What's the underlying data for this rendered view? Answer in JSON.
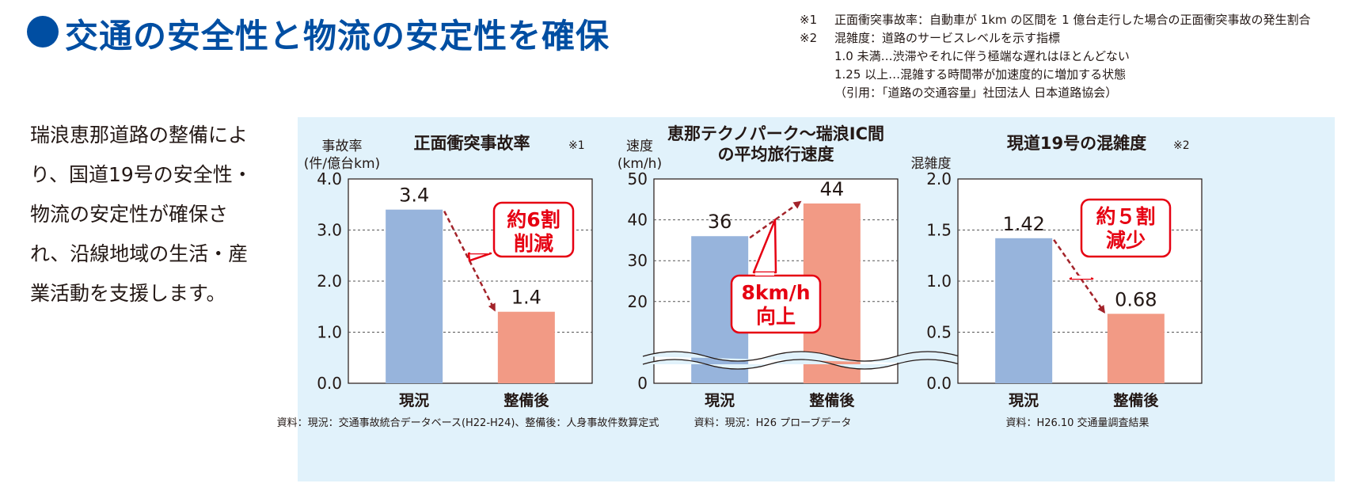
{
  "header": {
    "title": "交通の安全性と物流の安定性を確保"
  },
  "notes": [
    {
      "mark": "※1",
      "text": "正面衝突事故率：自動車が 1km の区間を 1 億台走行した場合の正面衝突事故の発生割合"
    },
    {
      "mark": "※2",
      "text": "混雑度：道路のサービスレベルを示す指標"
    },
    {
      "mark": "",
      "text": "1.0 未満…渋滞やそれに伴う極端な遅れはほとんどない"
    },
    {
      "mark": "",
      "text": "1.25 以上…混雑する時間帯が加速度的に増加する状態"
    },
    {
      "mark": "",
      "text": "（引用：「道路の交通容量」社団法人 日本道路協会）"
    }
  ],
  "intro": {
    "lines": [
      "瑞浪恵那道路の整備によ",
      "り、国道19号の安全性・",
      "物流の安定性が確保さ",
      "れ、沿線地域の生活・産",
      "業活動を支援します。"
    ]
  },
  "colors": {
    "title": "#004ea2",
    "before_bar": "#97b4dc",
    "after_bar": "#f29a85",
    "arrow": "#a3232a",
    "callout_border": "#e60012",
    "callout_text": "#e60012",
    "panel": "#e1f2fb"
  },
  "chart_data": [
    {
      "type": "bar",
      "title": "正面衝突事故率",
      "title_note": "※1",
      "ylabel_lines": [
        "事故率",
        "(件/億台km)"
      ],
      "categories": [
        "現況",
        "整備後"
      ],
      "values": [
        3.4,
        1.4
      ],
      "value_labels": [
        "3.4",
        "1.4"
      ],
      "ylim": [
        0,
        4
      ],
      "yticks": [
        0,
        1,
        2,
        3,
        4
      ],
      "ytick_labels": [
        "0.0",
        "1.0",
        "2.0",
        "3.0",
        "4.0"
      ],
      "callout_lines": [
        "約6割",
        "削減"
      ],
      "source": "資料：現況：交通事故統合データベース(H22-H24)、整備後：人身事故件数算定式",
      "grid": true
    },
    {
      "type": "bar",
      "title": "恵那テクノパーク～瑞浪IC間",
      "subtitle": "の平均旅行速度",
      "ylabel_lines": [
        "速度",
        "(km/h)"
      ],
      "categories": [
        "現況",
        "整備後"
      ],
      "values": [
        36,
        44
      ],
      "value_labels": [
        "36",
        "44"
      ],
      "ylim": [
        0,
        50
      ],
      "axis_break": true,
      "yticks": [
        0,
        20,
        30,
        40,
        50
      ],
      "ytick_labels": [
        "0",
        "20",
        "30",
        "40",
        "50"
      ],
      "callout_lines": [
        "8km/h",
        "向上"
      ],
      "source": "資料：現況：H26 プローブデータ",
      "grid": true
    },
    {
      "type": "bar",
      "title": "現道19号の混雑度",
      "title_note": "※2",
      "ylabel_lines": [
        "混雑度"
      ],
      "categories": [
        "現況",
        "整備後"
      ],
      "values": [
        1.42,
        0.68
      ],
      "value_labels": [
        "1.42",
        "0.68"
      ],
      "ylim": [
        0,
        2
      ],
      "yticks": [
        0,
        0.5,
        1,
        1.5,
        2
      ],
      "ytick_labels": [
        "0.0",
        "0.5",
        "1.0",
        "1.5",
        "2.0"
      ],
      "callout_lines": [
        "約５割",
        "減少"
      ],
      "source": "資料：H26.10 交通量調査結果",
      "grid": true
    }
  ]
}
